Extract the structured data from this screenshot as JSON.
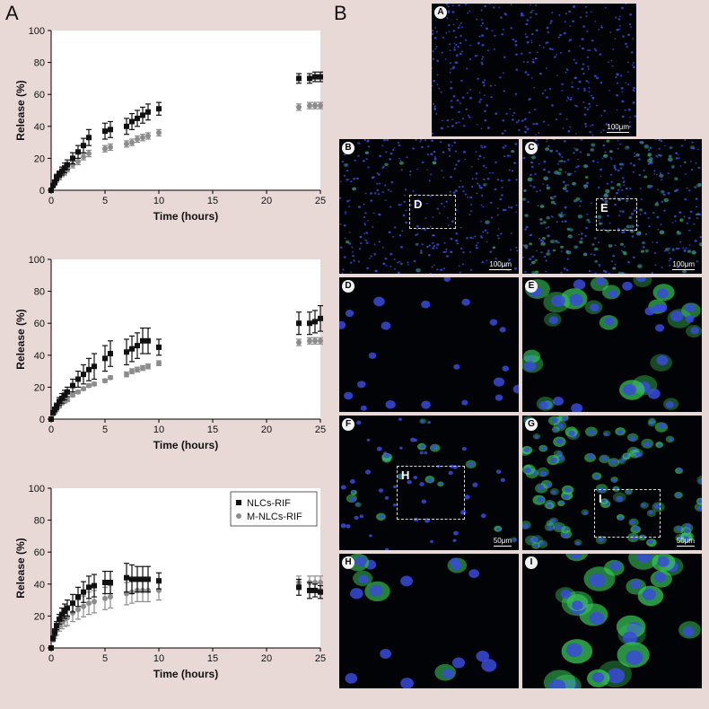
{
  "figure": {
    "panel_a_label": "A",
    "panel_b_label": "B"
  },
  "chart_data": [
    {
      "type": "scatter",
      "xlabel": "Time (hours)",
      "ylabel": "Release (%)",
      "xlim": [
        0,
        25
      ],
      "ylim": [
        0,
        100
      ],
      "xticks": [
        0,
        5,
        10,
        15,
        20,
        25
      ],
      "yticks": [
        0,
        20,
        40,
        60,
        80,
        100
      ],
      "series": [
        {
          "marker": "square",
          "color": "#111111",
          "x": [
            0,
            0.17,
            0.33,
            0.5,
            0.75,
            1,
            1.25,
            1.5,
            2,
            2.5,
            3,
            3.5,
            5,
            5.5,
            7,
            7.5,
            8,
            8.5,
            9,
            10,
            23,
            24,
            24.5,
            25
          ],
          "y": [
            0,
            3,
            5,
            8,
            10,
            12,
            14,
            16,
            20,
            24,
            28,
            33,
            37,
            38,
            40,
            43,
            45,
            47,
            49,
            51,
            70,
            70,
            71,
            71
          ],
          "err": [
            0,
            1,
            1.5,
            2,
            2,
            2.5,
            3,
            3,
            3.5,
            4,
            4.5,
            5,
            5,
            5,
            5,
            5,
            5,
            5,
            5,
            4,
            3,
            3,
            3,
            3
          ]
        },
        {
          "marker": "circle",
          "color": "#8c8c8c",
          "x": [
            0,
            0.17,
            0.33,
            0.5,
            0.75,
            1,
            1.25,
            1.5,
            2,
            2.5,
            3,
            3.5,
            5,
            5.5,
            7,
            7.5,
            8,
            8.5,
            9,
            10,
            23,
            24,
            24.5,
            25
          ],
          "y": [
            0,
            2.5,
            4,
            6,
            8,
            10,
            11,
            13,
            16,
            18,
            21,
            23,
            26,
            27,
            29,
            30,
            32,
            33,
            34,
            36,
            52,
            53,
            53,
            53
          ],
          "err": [
            0,
            0.5,
            1,
            1,
            1.5,
            1.5,
            1.5,
            1.5,
            2,
            2,
            2,
            2,
            2,
            2,
            2,
            2,
            2,
            2,
            2,
            2,
            2,
            2,
            2,
            2
          ]
        }
      ]
    },
    {
      "type": "scatter",
      "xlabel": "Time (hours)",
      "ylabel": "Release (%)",
      "xlim": [
        0,
        25
      ],
      "ylim": [
        0,
        100
      ],
      "xticks": [
        0,
        5,
        10,
        15,
        20,
        25
      ],
      "yticks": [
        0,
        20,
        40,
        60,
        80,
        100
      ],
      "series": [
        {
          "marker": "square",
          "color": "#111111",
          "x": [
            0,
            0.17,
            0.33,
            0.5,
            0.75,
            1,
            1.25,
            1.5,
            2,
            2.5,
            3,
            3.5,
            4,
            5,
            5.5,
            7,
            7.5,
            8,
            8.5,
            9,
            10,
            23,
            24,
            24.5,
            25
          ],
          "y": [
            0,
            4,
            6,
            8,
            11,
            13,
            15,
            17,
            21,
            25,
            28,
            31,
            33,
            38,
            41,
            42,
            44,
            46,
            49,
            49,
            45,
            60,
            60,
            61,
            63
          ],
          "err": [
            0,
            1,
            1.5,
            2,
            2.5,
            3,
            3,
            3,
            4,
            5,
            6,
            7,
            8,
            8,
            8,
            8,
            8,
            8,
            8,
            8,
            5,
            7,
            7,
            7,
            8
          ]
        },
        {
          "marker": "circle",
          "color": "#8c8c8c",
          "x": [
            0,
            0.17,
            0.33,
            0.5,
            0.75,
            1,
            1.25,
            1.5,
            2,
            2.5,
            3,
            3.5,
            4,
            5,
            5.5,
            7,
            7.5,
            8,
            8.5,
            9,
            10,
            23,
            24,
            24.5,
            25
          ],
          "y": [
            0,
            3,
            4,
            6,
            8,
            10,
            11,
            12,
            15,
            17,
            19,
            21,
            22,
            24,
            26,
            28,
            30,
            31,
            32,
            33,
            35,
            48,
            49,
            49,
            49
          ],
          "err": [
            0,
            0.5,
            0.5,
            1,
            1,
            1,
            1,
            1,
            1,
            1,
            1,
            1,
            1,
            1,
            1,
            1.5,
            1.5,
            1.5,
            1.5,
            1.5,
            1.5,
            2,
            2,
            2,
            2
          ]
        }
      ]
    },
    {
      "type": "scatter",
      "xlabel": "Time (hours)",
      "ylabel": "Release (%)",
      "xlim": [
        0,
        25
      ],
      "ylim": [
        0,
        100
      ],
      "xticks": [
        0,
        5,
        10,
        15,
        20,
        25
      ],
      "yticks": [
        0,
        20,
        40,
        60,
        80,
        100
      ],
      "legend": "top-right",
      "series": [
        {
          "name": "NLCs-RIF",
          "marker": "square",
          "color": "#111111",
          "x": [
            0,
            0.17,
            0.33,
            0.5,
            0.75,
            1,
            1.25,
            1.5,
            2,
            2.5,
            3,
            3.5,
            4,
            5,
            5.5,
            7,
            7.5,
            8,
            8.5,
            9,
            10,
            23,
            24,
            24.5,
            25
          ],
          "y": [
            0,
            6,
            10,
            14,
            18,
            21,
            23,
            25,
            28,
            32,
            35,
            38,
            39,
            41,
            41,
            44,
            43,
            43,
            43,
            43,
            42,
            38,
            36,
            36,
            35
          ],
          "err": [
            0,
            1.5,
            2,
            2.5,
            3,
            4,
            4.5,
            5,
            5.5,
            6,
            6.5,
            7,
            7,
            7,
            7,
            9,
            9,
            8,
            8,
            8,
            5,
            5,
            5,
            4,
            4
          ]
        },
        {
          "name": "M-NLCs-RIF",
          "marker": "circle",
          "color": "#8c8c8c",
          "x": [
            0,
            0.17,
            0.33,
            0.5,
            0.75,
            1,
            1.25,
            1.5,
            2,
            2.5,
            3,
            3.5,
            4,
            5,
            5.5,
            7,
            7.5,
            8,
            8.5,
            9,
            10,
            23,
            24,
            24.5,
            25
          ],
          "y": [
            0,
            5,
            8,
            11,
            14,
            16,
            18,
            19,
            22,
            24,
            26,
            28,
            29,
            31,
            32,
            34,
            35,
            36,
            36,
            36,
            36,
            41,
            41,
            41,
            41
          ],
          "err": [
            0,
            1,
            2,
            3,
            3.5,
            4,
            4.5,
            5,
            5.5,
            6,
            6.5,
            7,
            7,
            7,
            7,
            7,
            7,
            7,
            7,
            7,
            6,
            4,
            4,
            4,
            4
          ]
        }
      ]
    }
  ],
  "micrographs": [
    {
      "label": "A",
      "scale": "100μm",
      "density": 400,
      "green": 0,
      "cell_size": 1.2,
      "roi": null
    },
    {
      "label": "B",
      "scale": "100μm",
      "density": 360,
      "green": 0.05,
      "cell_size": 1.2,
      "roi": "D"
    },
    {
      "label": "C",
      "scale": "100μm",
      "density": 420,
      "green": 0.3,
      "cell_size": 1.2,
      "roi": "E"
    },
    {
      "label": "D",
      "scale": "",
      "density": 22,
      "green": 0.05,
      "cell_size": 5,
      "roi": null
    },
    {
      "label": "E",
      "scale": "",
      "density": 32,
      "green": 0.6,
      "cell_size": 6,
      "roi": null
    },
    {
      "label": "F",
      "scale": "50μm",
      "density": 60,
      "green": 0.3,
      "cell_size": 2.5,
      "roi": "H"
    },
    {
      "label": "G",
      "scale": "50μm",
      "density": 90,
      "green": 1,
      "cell_size": 3,
      "roi": "I"
    },
    {
      "label": "H",
      "scale": "",
      "density": 16,
      "green": 0.5,
      "cell_size": 7,
      "roi": null
    },
    {
      "label": "I",
      "scale": "",
      "density": 22,
      "green": 1,
      "cell_size": 8,
      "roi": null
    }
  ],
  "colors": {
    "background": "#e8d9d7",
    "nucleus": "#3a4bd8",
    "gfp": "#39c95a",
    "series1": "#111111",
    "series2": "#8c8c8c"
  }
}
